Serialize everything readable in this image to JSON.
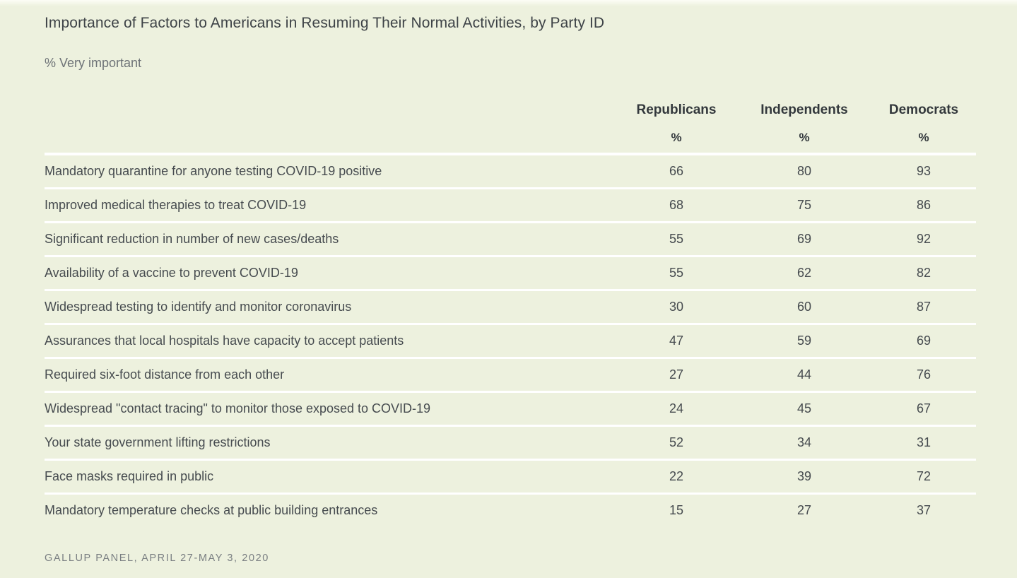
{
  "colors": {
    "background": "#edf1de",
    "separator": "#ffffff",
    "title_text": "#3e4347",
    "header_text": "#33383c",
    "body_text": "#464b4f",
    "muted_text": "#7a7f82"
  },
  "chart_data": {
    "type": "table",
    "title": "Importance of Factors to Americans in Resuming Their Normal Activities, by Party ID",
    "subtitle": "% Very important",
    "source": "GALLUP PANEL, APRIL 27-MAY 3, 2020",
    "columns": [
      "Republicans",
      "Independents",
      "Democrats"
    ],
    "units_row": [
      "%",
      "%",
      "%"
    ],
    "rows": [
      {
        "label": "Mandatory quarantine for anyone testing COVID-19 positive",
        "values": [
          66,
          80,
          93
        ]
      },
      {
        "label": "Improved medical therapies to treat COVID-19",
        "values": [
          68,
          75,
          86
        ]
      },
      {
        "label": "Significant reduction in number of new cases/deaths",
        "values": [
          55,
          69,
          92
        ]
      },
      {
        "label": "Availability of a vaccine to prevent COVID-19",
        "values": [
          55,
          62,
          82
        ]
      },
      {
        "label": "Widespread testing to identify and monitor coronavirus",
        "values": [
          30,
          60,
          87
        ]
      },
      {
        "label": "Assurances that local hospitals have capacity to accept patients",
        "values": [
          47,
          59,
          69
        ]
      },
      {
        "label": "Required six-foot distance from each other",
        "values": [
          27,
          44,
          76
        ]
      },
      {
        "label": "Widespread \"contact tracing\" to monitor those exposed to COVID-19",
        "values": [
          24,
          45,
          67
        ]
      },
      {
        "label": "Your state government lifting restrictions",
        "values": [
          52,
          34,
          31
        ]
      },
      {
        "label": "Face masks required in public",
        "values": [
          22,
          39,
          72
        ]
      },
      {
        "label": "Mandatory temperature checks at public building entrances",
        "values": [
          15,
          27,
          37
        ]
      }
    ]
  }
}
